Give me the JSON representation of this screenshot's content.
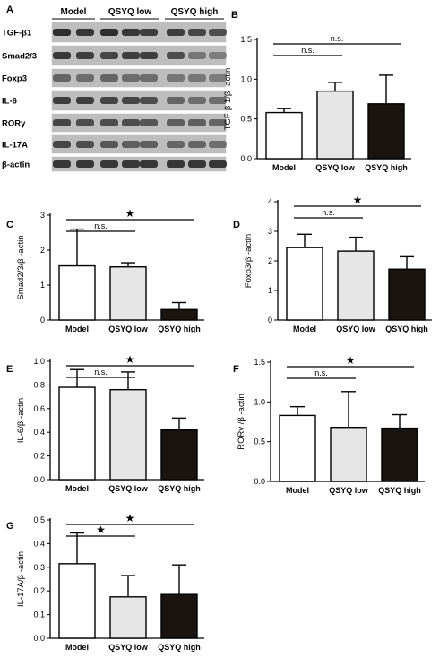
{
  "blot": {
    "panel_label": "A",
    "groups": [
      "Model",
      "QSYQ low",
      "QSYQ high"
    ],
    "rows": [
      "TGF-β1",
      "Smad2/3",
      "Foxp3",
      "IL-6",
      "RORγ",
      "IL-17A",
      "β-actin"
    ]
  },
  "colors": {
    "Model": "#ffffff",
    "QSYQ low": "#e6e6e6",
    "QSYQ high": "#1a1411"
  },
  "chart_data": [
    {
      "panel": "B",
      "type": "bar",
      "categories": [
        "Model",
        "QSYQ low",
        "QSYQ high"
      ],
      "values": [
        0.58,
        0.85,
        0.69
      ],
      "errors": [
        0.05,
        0.11,
        0.36
      ],
      "ylabel": "TGF-β 1/β -actin",
      "ylim": [
        0,
        1.5
      ],
      "ticks": [
        "0.0",
        "0.5",
        "1.0",
        "1.5"
      ],
      "annotations": [
        {
          "from": 0,
          "to": 1,
          "label": "n.s."
        },
        {
          "from": 0,
          "to": 2,
          "label": "n.s."
        }
      ]
    },
    {
      "panel": "C",
      "type": "bar",
      "categories": [
        "Model",
        "QSYQ low",
        "QSYQ high"
      ],
      "values": [
        1.55,
        1.52,
        0.3
      ],
      "errors": [
        1.05,
        0.12,
        0.2
      ],
      "ylabel": "Smad2/3/β -actin",
      "ylim": [
        0,
        3
      ],
      "ticks": [
        "0",
        "1",
        "2",
        "3"
      ],
      "annotations": [
        {
          "from": 0,
          "to": 1,
          "label": "n.s."
        },
        {
          "from": 0,
          "to": 2,
          "label": "★"
        }
      ]
    },
    {
      "panel": "D",
      "type": "bar",
      "categories": [
        "Model",
        "QSYQ low",
        "QSYQ high"
      ],
      "values": [
        2.45,
        2.33,
        1.72
      ],
      "errors": [
        0.45,
        0.47,
        0.42
      ],
      "ylabel": "Foxp3/β -actin",
      "ylim": [
        0,
        4
      ],
      "ticks": [
        "0",
        "1",
        "2",
        "3",
        "4"
      ],
      "annotations": [
        {
          "from": 0,
          "to": 1,
          "label": "n.s."
        },
        {
          "from": 0,
          "to": 2,
          "label": "★"
        }
      ]
    },
    {
      "panel": "E",
      "type": "bar",
      "categories": [
        "Model",
        "QSYQ low",
        "QSYQ high"
      ],
      "values": [
        0.78,
        0.76,
        0.42
      ],
      "errors": [
        0.15,
        0.15,
        0.1
      ],
      "ylabel": "IL-6/β -actin",
      "ylim": [
        0,
        1.0
      ],
      "ticks": [
        "0.0",
        "0.2",
        "0.4",
        "0.6",
        "0.8",
        "1.0"
      ],
      "annotations": [
        {
          "from": 0,
          "to": 1,
          "label": "n.s."
        },
        {
          "from": 0,
          "to": 2,
          "label": "★"
        }
      ]
    },
    {
      "panel": "F",
      "type": "bar",
      "categories": [
        "Model",
        "QSYQ low",
        "QSYQ high"
      ],
      "values": [
        0.83,
        0.68,
        0.67
      ],
      "errors": [
        0.11,
        0.45,
        0.17
      ],
      "ylabel": "RORγ /β -actin",
      "ylim": [
        0,
        1.5
      ],
      "ticks": [
        "0.0",
        "0.5",
        "1.0",
        "1.5"
      ],
      "annotations": [
        {
          "from": 0,
          "to": 1,
          "label": "n.s."
        },
        {
          "from": 0,
          "to": 2,
          "label": "★"
        }
      ]
    },
    {
      "panel": "G",
      "type": "bar",
      "categories": [
        "Model",
        "QSYQ low",
        "QSYQ high"
      ],
      "values": [
        0.315,
        0.175,
        0.185
      ],
      "errors": [
        0.13,
        0.09,
        0.125
      ],
      "ylabel": "IL-17A/β -actin",
      "ylim": [
        0,
        0.5
      ],
      "ticks": [
        "0.0",
        "0.1",
        "0.2",
        "0.3",
        "0.4",
        "0.5"
      ],
      "annotations": [
        {
          "from": 0,
          "to": 1,
          "label": "★"
        },
        {
          "from": 0,
          "to": 2,
          "label": "★"
        }
      ]
    }
  ]
}
